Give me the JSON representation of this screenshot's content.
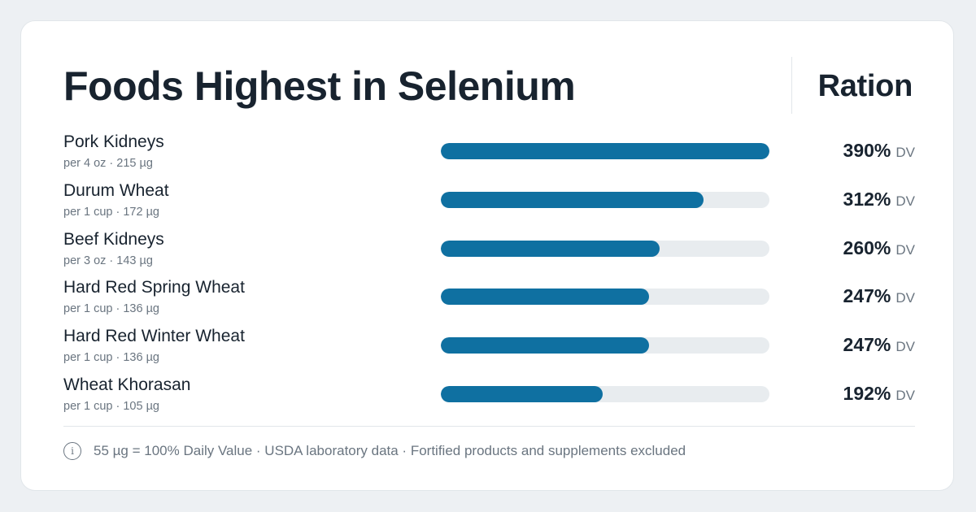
{
  "header": {
    "title": "Foods Highest in Selenium",
    "brand": "Ration"
  },
  "chart_data": {
    "type": "bar",
    "orientation": "horizontal",
    "value_unit": "DV",
    "xlim": [
      0,
      390
    ],
    "categories": [
      "Pork Kidneys",
      "Durum Wheat",
      "Beef Kidneys",
      "Hard Red Spring Wheat",
      "Hard Red Winter Wheat",
      "Wheat Khorasan"
    ],
    "values": [
      390,
      312,
      260,
      247,
      247,
      192
    ],
    "rows": [
      {
        "name": "Pork Kidneys",
        "serving": "per 4 oz · 215 µg",
        "pct": 390,
        "label": "390%",
        "unit": "DV"
      },
      {
        "name": "Durum Wheat",
        "serving": "per 1 cup · 172 µg",
        "pct": 312,
        "label": "312%",
        "unit": "DV"
      },
      {
        "name": "Beef Kidneys",
        "serving": "per 3 oz · 143 µg",
        "pct": 260,
        "label": "260%",
        "unit": "DV"
      },
      {
        "name": "Hard Red Spring Wheat",
        "serving": "per 1 cup · 136 µg",
        "pct": 247,
        "label": "247%",
        "unit": "DV"
      },
      {
        "name": "Hard Red Winter Wheat",
        "serving": "per 1 cup · 136 µg",
        "pct": 247,
        "label": "247%",
        "unit": "DV"
      },
      {
        "name": "Wheat Khorasan",
        "serving": "per 1 cup · 105 µg",
        "pct": 192,
        "label": "192%",
        "unit": "DV"
      }
    ]
  },
  "footer": {
    "icon": "info-icon",
    "text": "55 µg = 100% Daily Value · USDA laboratory data · Fortified products and supplements excluded"
  },
  "colors": {
    "bar": "#0f70a1",
    "track": "#e8ecef",
    "text": "#18232f",
    "muted": "#6a7580",
    "background": "#edf0f3"
  }
}
